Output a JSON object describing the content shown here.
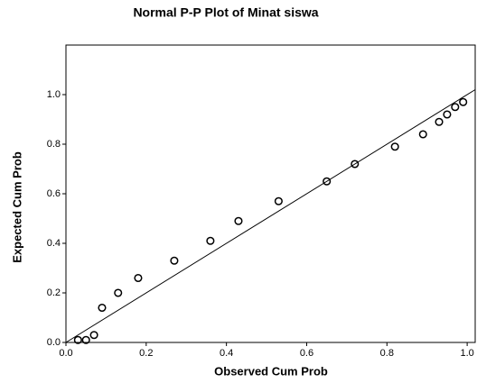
{
  "chart_data": {
    "type": "scatter",
    "title": "Normal P-P Plot of Minat siswa",
    "x_label": "Observed Cum Prob",
    "y_label": "Expected Cum Prob",
    "x": [
      0.03,
      0.05,
      0.07,
      0.09,
      0.13,
      0.18,
      0.27,
      0.36,
      0.43,
      0.53,
      0.65,
      0.72,
      0.82,
      0.89,
      0.93,
      0.95,
      0.97,
      0.99
    ],
    "values": [
      0.01,
      0.01,
      0.03,
      0.14,
      0.2,
      0.26,
      0.33,
      0.41,
      0.49,
      0.57,
      0.65,
      0.72,
      0.79,
      0.84,
      0.89,
      0.92,
      0.95,
      0.97
    ],
    "color": "#000000",
    "xlim": [
      0,
      1.02
    ],
    "ylim": [
      0,
      1.2
    ],
    "xticks": [
      {
        "value": 0,
        "label": "0.0"
      },
      0.2,
      0.4,
      0.6,
      0.8,
      {
        "value": 1,
        "label": "1.0"
      }
    ],
    "yticks": [
      {
        "value": 0,
        "label": "0.0"
      },
      0.2,
      0.4,
      0.6,
      0.8,
      {
        "value": 1,
        "label": "1.0"
      }
    ]
  }
}
